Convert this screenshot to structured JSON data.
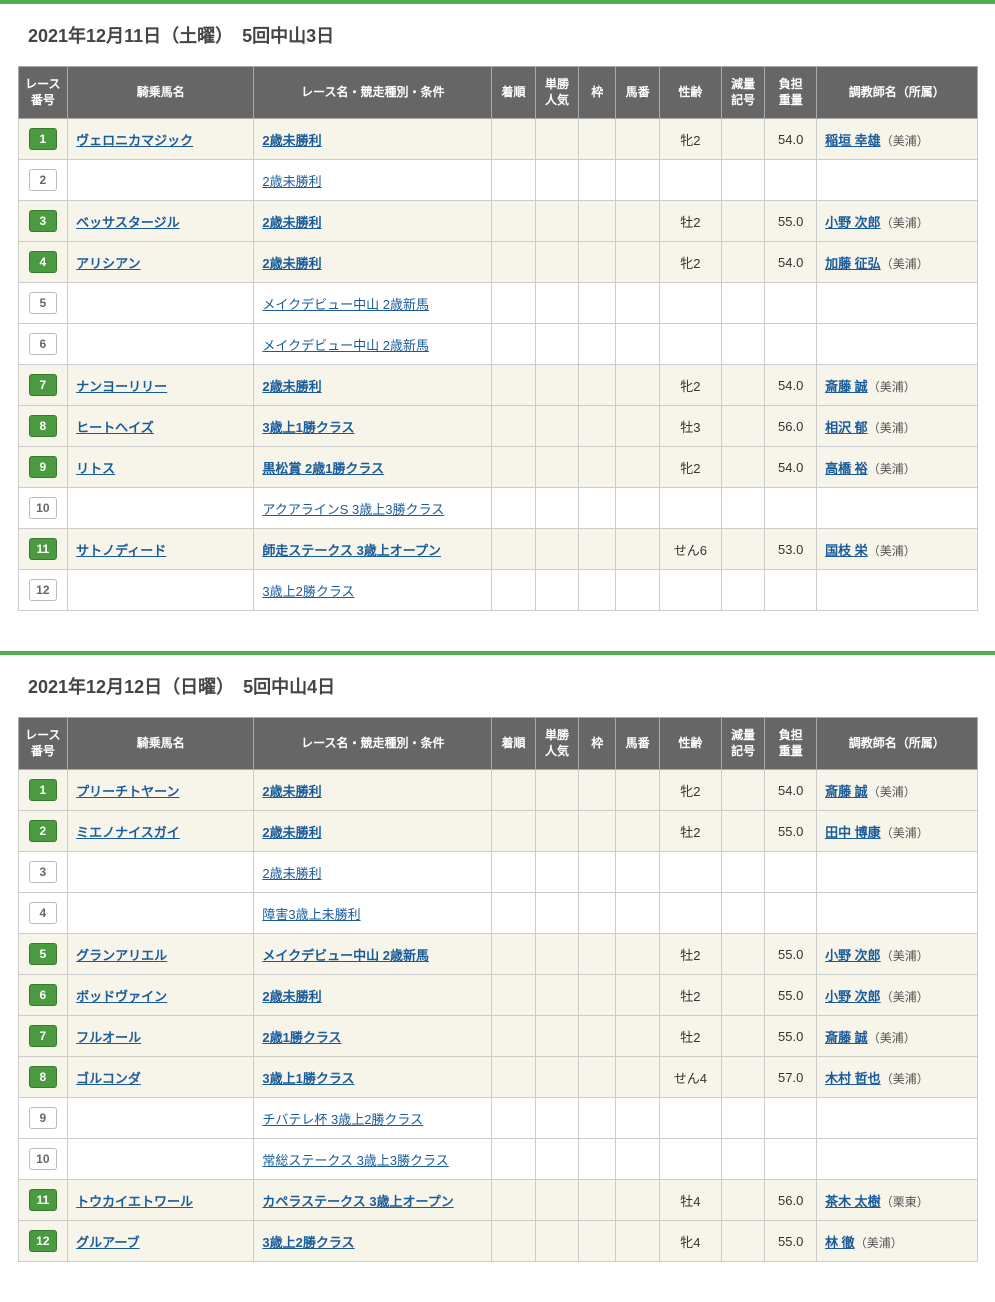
{
  "columns": {
    "race_no": "レース\n番号",
    "horse": "騎乗馬名",
    "race_name": "レース名・競走種別・条件",
    "order": "着順",
    "popularity": "単勝\n人気",
    "frame": "枠",
    "horse_no": "馬番",
    "age": "性齢",
    "handicap_mark": "減量\n記号",
    "weight": "負担\n重量",
    "trainer": "調教師名（所属）"
  },
  "sections": [
    {
      "title": "2021年12月11日（土曜）　5回中山3日",
      "rows": [
        {
          "no": "1",
          "filled": true,
          "horse": "ヴェロニカマジック",
          "race": "2歳未勝利",
          "age": "牝2",
          "wt": "54.0",
          "trainer": "稲垣 幸雄",
          "affil": "（美浦）"
        },
        {
          "no": "2",
          "filled": false,
          "horse": "",
          "race": "2歳未勝利",
          "age": "",
          "wt": "",
          "trainer": "",
          "affil": ""
        },
        {
          "no": "3",
          "filled": true,
          "horse": "ベッサスタージル",
          "race": "2歳未勝利",
          "age": "牡2",
          "wt": "55.0",
          "trainer": "小野 次郎",
          "affil": "（美浦）"
        },
        {
          "no": "4",
          "filled": true,
          "horse": "アリシアン",
          "race": "2歳未勝利",
          "age": "牝2",
          "wt": "54.0",
          "trainer": "加藤 征弘",
          "affil": "（美浦）"
        },
        {
          "no": "5",
          "filled": false,
          "horse": "",
          "race": "メイクデビュー中山 2歳新馬",
          "age": "",
          "wt": "",
          "trainer": "",
          "affil": ""
        },
        {
          "no": "6",
          "filled": false,
          "horse": "",
          "race": "メイクデビュー中山 2歳新馬",
          "age": "",
          "wt": "",
          "trainer": "",
          "affil": ""
        },
        {
          "no": "7",
          "filled": true,
          "horse": "ナンヨーリリー",
          "race": "2歳未勝利",
          "age": "牝2",
          "wt": "54.0",
          "trainer": "斎藤 誠",
          "affil": "（美浦）"
        },
        {
          "no": "8",
          "filled": true,
          "horse": "ヒートヘイズ",
          "race": "3歳上1勝クラス",
          "age": "牡3",
          "wt": "56.0",
          "trainer": "相沢 郁",
          "affil": "（美浦）"
        },
        {
          "no": "9",
          "filled": true,
          "horse": "リトス",
          "race": "黒松賞 2歳1勝クラス",
          "age": "牝2",
          "wt": "54.0",
          "trainer": "高橋 裕",
          "affil": "（美浦）"
        },
        {
          "no": "10",
          "filled": false,
          "horse": "",
          "race": "アクアラインS 3歳上3勝クラス",
          "age": "",
          "wt": "",
          "trainer": "",
          "affil": ""
        },
        {
          "no": "11",
          "filled": true,
          "horse": "サトノディード",
          "race": "師走ステークス 3歳上オープン",
          "age": "せん6",
          "wt": "53.0",
          "trainer": "国枝 栄",
          "affil": "（美浦）"
        },
        {
          "no": "12",
          "filled": false,
          "horse": "",
          "race": "3歳上2勝クラス",
          "age": "",
          "wt": "",
          "trainer": "",
          "affil": ""
        }
      ]
    },
    {
      "title": "2021年12月12日（日曜）　5回中山4日",
      "rows": [
        {
          "no": "1",
          "filled": true,
          "horse": "プリーチトヤーン",
          "race": "2歳未勝利",
          "age": "牝2",
          "wt": "54.0",
          "trainer": "斎藤 誠",
          "affil": "（美浦）"
        },
        {
          "no": "2",
          "filled": true,
          "horse": "ミエノナイスガイ",
          "race": "2歳未勝利",
          "age": "牡2",
          "wt": "55.0",
          "trainer": "田中 博康",
          "affil": "（美浦）"
        },
        {
          "no": "3",
          "filled": false,
          "horse": "",
          "race": "2歳未勝利",
          "age": "",
          "wt": "",
          "trainer": "",
          "affil": ""
        },
        {
          "no": "4",
          "filled": false,
          "horse": "",
          "race": "障害3歳上未勝利",
          "age": "",
          "wt": "",
          "trainer": "",
          "affil": ""
        },
        {
          "no": "5",
          "filled": true,
          "horse": "グランアリエル",
          "race": "メイクデビュー中山 2歳新馬",
          "age": "牡2",
          "wt": "55.0",
          "trainer": "小野 次郎",
          "affil": "（美浦）"
        },
        {
          "no": "6",
          "filled": true,
          "horse": "ボッドヴァイン",
          "race": "2歳未勝利",
          "age": "牡2",
          "wt": "55.0",
          "trainer": "小野 次郎",
          "affil": "（美浦）"
        },
        {
          "no": "7",
          "filled": true,
          "horse": "フルオール",
          "race": "2歳1勝クラス",
          "age": "牡2",
          "wt": "55.0",
          "trainer": "斎藤 誠",
          "affil": "（美浦）"
        },
        {
          "no": "8",
          "filled": true,
          "horse": "ゴルコンダ",
          "race": "3歳上1勝クラス",
          "age": "せん4",
          "wt": "57.0",
          "trainer": "木村 哲也",
          "affil": "（美浦）"
        },
        {
          "no": "9",
          "filled": false,
          "horse": "",
          "race": "チバテレ杯 3歳上2勝クラス",
          "age": "",
          "wt": "",
          "trainer": "",
          "affil": ""
        },
        {
          "no": "10",
          "filled": false,
          "horse": "",
          "race": "常総ステークス 3歳上3勝クラス",
          "age": "",
          "wt": "",
          "trainer": "",
          "affil": ""
        },
        {
          "no": "11",
          "filled": true,
          "horse": "トウカイエトワール",
          "race": "カペラステークス 3歳上オープン",
          "age": "牡4",
          "wt": "56.0",
          "trainer": "茶木 太樹",
          "affil": "（栗東）"
        },
        {
          "no": "12",
          "filled": true,
          "horse": "グルアーブ",
          "race": "3歳上2勝クラス",
          "age": "牝4",
          "wt": "55.0",
          "trainer": "林 徹",
          "affil": "（美浦）"
        }
      ]
    }
  ],
  "styling": {
    "header_bg": "#666666",
    "header_fg": "#ffffff",
    "filled_row_bg": "#f7f4ea",
    "empty_row_bg": "#ffffff",
    "badge_green_bg": "#4a9b3f",
    "badge_green_fg": "#ffffff",
    "badge_white_bg": "#ffffff",
    "badge_white_fg": "#666666",
    "link_color": "#1a5c9a",
    "green_bar": "#4caf50",
    "border_color": "#cccccc",
    "title_fontsize": 18,
    "cell_fontsize": 13,
    "header_fontsize": 12
  }
}
